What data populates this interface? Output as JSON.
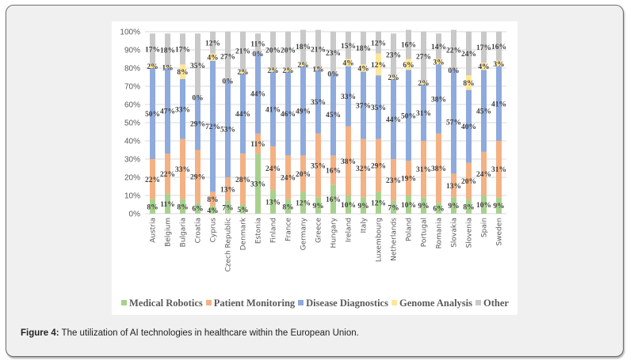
{
  "caption": {
    "label": "Figure 4:",
    "text": " The utilization of AI technologies in healthcare within the European Union."
  },
  "chart_data": {
    "type": "bar",
    "stacked": true,
    "percent": true,
    "title": "",
    "xlabel": "",
    "ylabel": "",
    "ylim": [
      0,
      100
    ],
    "yticks": [
      "0%",
      "10%",
      "20%",
      "30%",
      "40%",
      "50%",
      "60%",
      "70%",
      "80%",
      "90%",
      "100%"
    ],
    "grid": true,
    "legend_position": "bottom",
    "categories": [
      "Austria",
      "Belgium",
      "Bulgaria",
      "Croatia",
      "Cyprus",
      "Czech Republic",
      "Denmark",
      "Estonia",
      "Finland",
      "France",
      "Germany",
      "Greece",
      "Hungary",
      "Ireland",
      "Italy",
      "Luxembourg",
      "Netherlands",
      "Poland",
      "Portugal",
      "Romania",
      "Slovakia",
      "Slovenia",
      "Spain",
      "Sweden"
    ],
    "series": [
      {
        "name": "Medical Robotics",
        "color": "#a9d18e",
        "values": [
          8,
          11,
          8,
          6,
          4,
          7,
          5,
          33,
          13,
          8,
          12,
          9,
          16,
          10,
          9,
          12,
          7,
          10,
          9,
          6,
          9,
          8,
          10,
          9
        ]
      },
      {
        "name": "Patient Monitoring",
        "color": "#f4b183",
        "values": [
          22,
          22,
          33,
          29,
          8,
          13,
          28,
          11,
          24,
          24,
          20,
          35,
          16,
          38,
          32,
          29,
          23,
          19,
          31,
          38,
          13,
          20,
          24,
          31
        ]
      },
      {
        "name": "Disease Diagnostics",
        "color": "#8faadc",
        "values": [
          50,
          47,
          33,
          29,
          72,
          53,
          44,
          44,
          41,
          46,
          49,
          35,
          45,
          33,
          37,
          35,
          44,
          50,
          31,
          38,
          57,
          40,
          45,
          41
        ]
      },
      {
        "name": "Genome Analysis",
        "color": "#ffe699",
        "values": [
          2,
          1,
          8,
          0,
          4,
          0,
          2,
          0,
          2,
          2,
          2,
          1,
          0,
          4,
          4,
          12,
          2,
          6,
          2,
          3,
          0,
          8,
          4,
          3
        ]
      },
      {
        "name": "Other",
        "color": "#c9c9c9",
        "values": [
          17,
          18,
          17,
          35,
          12,
          27,
          21,
          11,
          20,
          20,
          18,
          21,
          23,
          15,
          18,
          12,
          23,
          16,
          27,
          14,
          22,
          24,
          17,
          16
        ]
      }
    ]
  }
}
